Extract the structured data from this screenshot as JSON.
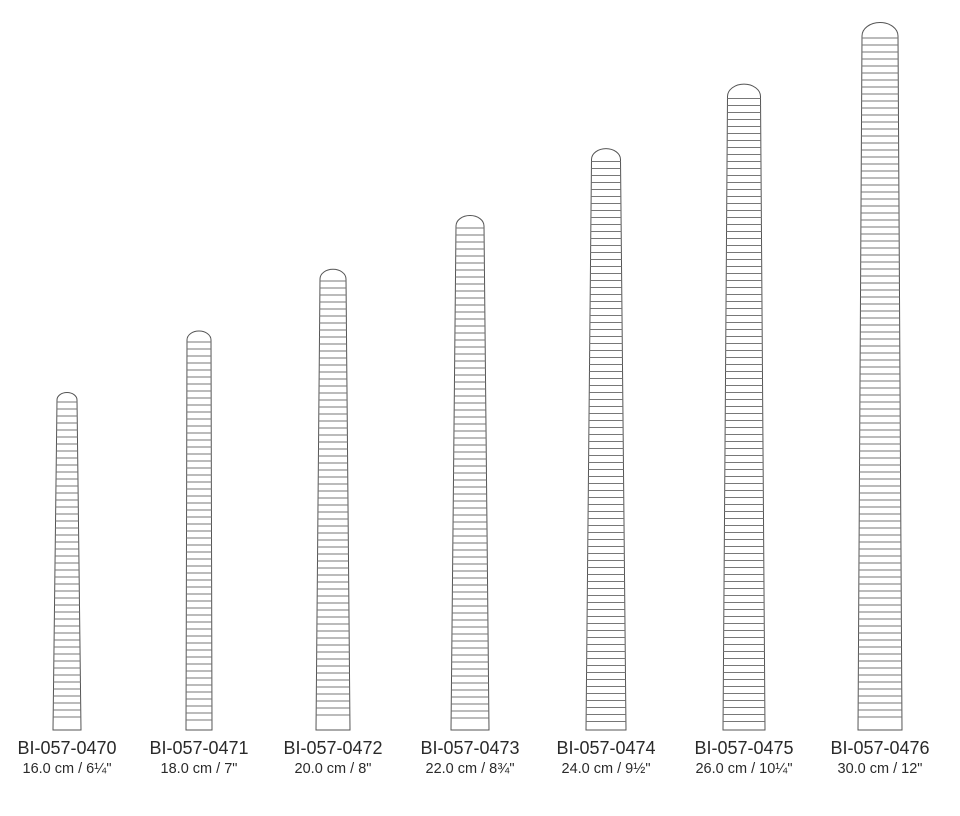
{
  "items": [
    {
      "code": "BI-057-0470",
      "size": "16.0 cm / 6¼\""
    },
    {
      "code": "BI-057-0471",
      "size": "18.0 cm / 7\""
    },
    {
      "code": "BI-057-0472",
      "size": "20.0 cm / 8\""
    },
    {
      "code": "BI-057-0473",
      "size": "22.0 cm / 8¾\""
    },
    {
      "code": "BI-057-0474",
      "size": "24.0 cm / 9½\""
    },
    {
      "code": "BI-057-0475",
      "size": "26.0 cm / 10¼\""
    },
    {
      "code": "BI-057-0476",
      "size": "30.0 cm / 12\""
    }
  ],
  "colors": {
    "line": "#555555",
    "stripe": "#777777",
    "text": "#2a2a2a"
  }
}
